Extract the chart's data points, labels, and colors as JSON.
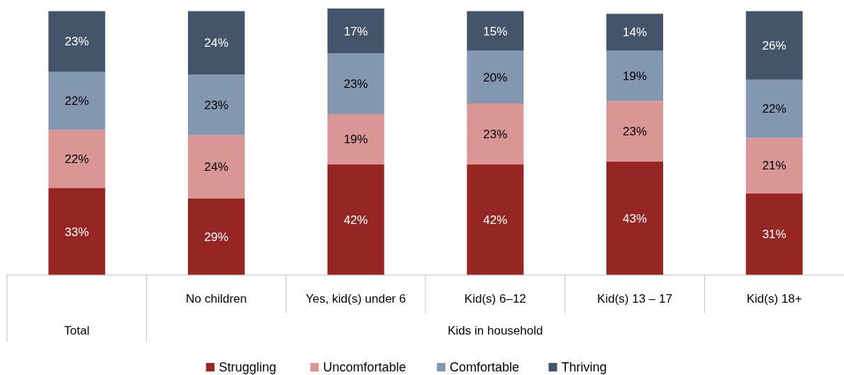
{
  "chart_data": {
    "type": "bar",
    "stacked": true,
    "categories": [
      null,
      "No children",
      "Yes, kid(s) under 6",
      "Kid(s) 6–12",
      "Kid(s) 13 – 17",
      "Kid(s) 18+"
    ],
    "annotations": [
      "Total",
      "Kids in household"
    ],
    "ylim": [
      0,
      101
    ],
    "tick_labels": "x",
    "legend": "bottom",
    "series": [
      {
        "name": "Struggling",
        "color": "#952623",
        "values": [
          33,
          29,
          42,
          42,
          43,
          31
        ],
        "value_labels": [
          "33%",
          "29%",
          "42%",
          "42%",
          "43%",
          "31%"
        ]
      },
      {
        "name": "Uncomfortable",
        "color": "#d99694",
        "values": [
          22,
          24,
          19,
          23,
          23,
          21
        ],
        "value_labels": [
          "22%",
          "24%",
          "19%",
          "23%",
          "23%",
          "21%"
        ]
      },
      {
        "name": "Comfortable",
        "color": "#8497b0",
        "values": [
          22,
          23,
          23,
          20,
          19,
          22
        ],
        "value_labels": [
          "22%",
          "23%",
          "23%",
          "20%",
          "19%",
          "22%"
        ]
      },
      {
        "name": "Thriving",
        "color": "#44546a",
        "values": [
          23,
          24,
          17,
          15,
          14,
          26
        ],
        "value_labels": [
          "23%",
          "24%",
          "17%",
          "15%",
          "14%",
          "26%"
        ]
      }
    ]
  }
}
